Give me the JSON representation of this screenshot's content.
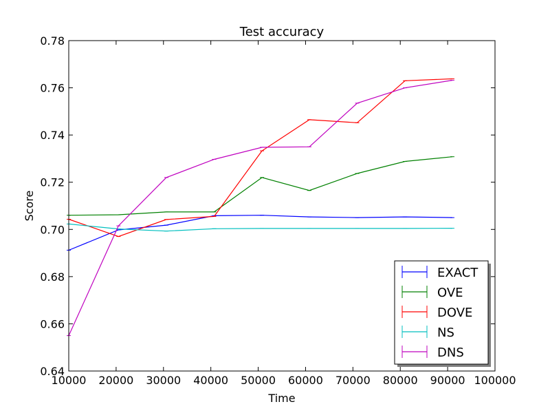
{
  "chart_data": {
    "type": "line",
    "title": "Test accuracy",
    "xlabel": "Time",
    "ylabel": "Score",
    "xlim": [
      10000,
      100000
    ],
    "ylim": [
      0.64,
      0.78
    ],
    "xticks": [
      10000,
      20000,
      30000,
      40000,
      50000,
      60000,
      70000,
      80000,
      90000,
      100000
    ],
    "xtick_labels": [
      "10000",
      "20000",
      "30000",
      "40000",
      "50000",
      "60000",
      "70000",
      "80000",
      "90000",
      "100000"
    ],
    "yticks": [
      0.64,
      0.66,
      0.68,
      0.7,
      0.72,
      0.74,
      0.76,
      0.78
    ],
    "ytick_labels": [
      "0.64",
      "0.66",
      "0.68",
      "0.70",
      "0.72",
      "0.74",
      "0.76",
      "0.78"
    ],
    "grid": false,
    "legend_position": "bottom-right",
    "series": [
      {
        "name": "EXACT",
        "color": "#0000ff",
        "x": [
          10000,
          20500,
          30600,
          40700,
          50800,
          60800,
          70900,
          81000,
          91000
        ],
        "y": [
          0.6912,
          0.6998,
          0.7018,
          0.7058,
          0.706,
          0.7053,
          0.705,
          0.7053,
          0.705
        ]
      },
      {
        "name": "OVE",
        "color": "#008000",
        "x": [
          10000,
          20500,
          30600,
          40700,
          50800,
          60800,
          70900,
          81000,
          91000
        ],
        "y": [
          0.706,
          0.7062,
          0.7074,
          0.7074,
          0.722,
          0.7165,
          0.7237,
          0.7288,
          0.7308
        ]
      },
      {
        "name": "DOVE",
        "color": "#ff0000",
        "x": [
          10000,
          20500,
          30600,
          40700,
          50800,
          60800,
          70900,
          81000,
          91000
        ],
        "y": [
          0.7043,
          0.697,
          0.7042,
          0.7055,
          0.7333,
          0.7465,
          0.7452,
          0.763,
          0.7638
        ]
      },
      {
        "name": "NS",
        "color": "#00bfbf",
        "x": [
          10000,
          20500,
          30600,
          40700,
          50800,
          60800,
          70900,
          81000,
          91000
        ],
        "y": [
          0.7023,
          0.7002,
          0.6993,
          0.7003,
          0.7004,
          0.7004,
          0.7004,
          0.7004,
          0.7005
        ]
      },
      {
        "name": "DNS",
        "color": "#bf00bf",
        "x": [
          10000,
          20500,
          30600,
          40700,
          50800,
          60800,
          70900,
          81000,
          91000
        ],
        "y": [
          0.655,
          0.7015,
          0.722,
          0.7297,
          0.7348,
          0.735,
          0.7535,
          0.76,
          0.7632
        ]
      }
    ]
  }
}
